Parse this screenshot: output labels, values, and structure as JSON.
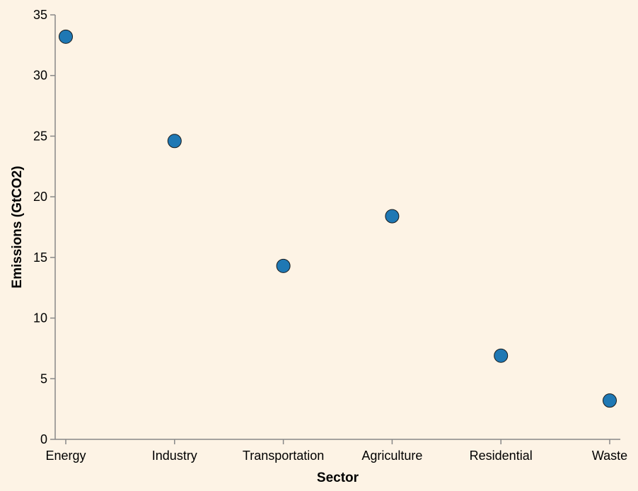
{
  "chart_data": {
    "type": "scatter",
    "categories": [
      "Energy",
      "Industry",
      "Transportation",
      "Agriculture",
      "Residential",
      "Waste"
    ],
    "values": [
      33.2,
      24.6,
      14.3,
      18.4,
      6.9,
      3.2
    ],
    "xlabel": "Sector",
    "ylabel": "Emissions (GtCO2)",
    "ylim": [
      0,
      35
    ],
    "yticks": [
      0,
      5,
      10,
      15,
      20,
      25,
      30,
      35
    ],
    "grid": false,
    "colors": {
      "point": "#1f78b4",
      "axis": "#888888",
      "background": "#fdf3e5"
    }
  }
}
